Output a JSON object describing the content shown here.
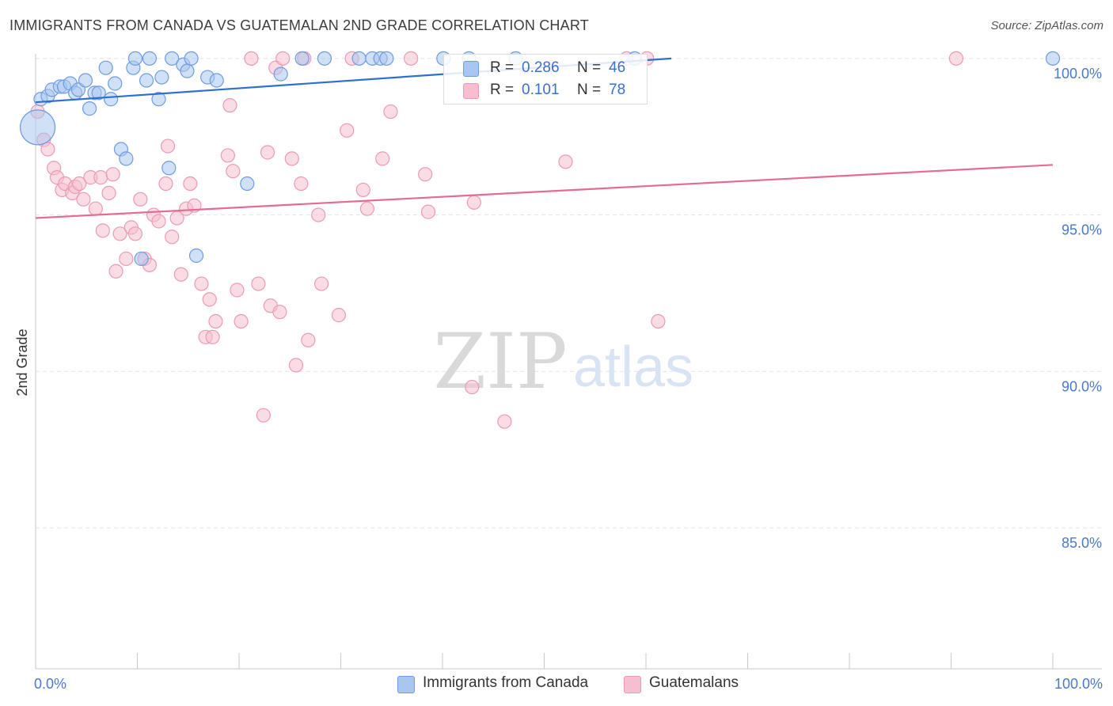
{
  "title": "IMMIGRANTS FROM CANADA VS GUATEMALAN 2ND GRADE CORRELATION CHART",
  "source": "Source: ZipAtlas.com",
  "watermark": {
    "zip": "ZIP",
    "atlas": "atlas"
  },
  "colors": {
    "blue_fill": "#a9c6ee",
    "blue_stroke": "#6f9be0",
    "blue_line": "#2f6fd0",
    "pink_fill": "#f6bfd0",
    "pink_stroke": "#ec9ab4",
    "pink_line": "#e56b93",
    "axis_text": "#4b78c8",
    "grid": "#e3e3e3"
  },
  "legend_stats": [
    {
      "series": "Immigrants from Canada",
      "r_label": "R =",
      "r_value": "0.286",
      "n_label": "N =",
      "n_value": "46"
    },
    {
      "series": "Guatemalans",
      "r_label": "R =",
      "r_value": "0.101",
      "n_label": "N =",
      "n_value": "78"
    }
  ],
  "chart_data": {
    "type": "scatter",
    "title": "IMMIGRANTS FROM CANADA VS GUATEMALAN 2ND GRADE CORRELATION CHART",
    "xlabel": "",
    "ylabel": "2nd Grade",
    "xlim": [
      0,
      100
    ],
    "ylim": [
      80.5,
      100.35
    ],
    "x_tick_labels": [
      {
        "value": 0,
        "label": "0.0%"
      },
      {
        "value": 100,
        "label": "100.0%"
      }
    ],
    "y_tick_labels": [
      {
        "value": 100,
        "label": "100.0%"
      },
      {
        "value": 95,
        "label": "95.0%"
      },
      {
        "value": 90,
        "label": "90.0%"
      },
      {
        "value": 85,
        "label": "85.0%"
      }
    ],
    "grid": true,
    "legend_position": "bottom",
    "series": [
      {
        "name": "Immigrants from Canada",
        "color": "#a9c6ee",
        "trend": {
          "x0": 0,
          "y0": 98.6,
          "x1": 62.5,
          "y1": 100.0
        },
        "points": [
          {
            "x": 0.2,
            "y": 97.8,
            "big": true
          },
          {
            "x": 0.5,
            "y": 98.7
          },
          {
            "x": 1.2,
            "y": 98.8
          },
          {
            "x": 1.6,
            "y": 99.0
          },
          {
            "x": 2.4,
            "y": 99.1
          },
          {
            "x": 2.8,
            "y": 99.1
          },
          {
            "x": 3.4,
            "y": 99.2
          },
          {
            "x": 3.9,
            "y": 98.9
          },
          {
            "x": 4.2,
            "y": 99.0
          },
          {
            "x": 4.9,
            "y": 99.3
          },
          {
            "x": 5.3,
            "y": 98.4
          },
          {
            "x": 5.8,
            "y": 98.9
          },
          {
            "x": 6.2,
            "y": 98.9
          },
          {
            "x": 6.9,
            "y": 99.7
          },
          {
            "x": 7.4,
            "y": 98.7
          },
          {
            "x": 7.8,
            "y": 99.2
          },
          {
            "x": 8.4,
            "y": 97.1
          },
          {
            "x": 8.9,
            "y": 96.8
          },
          {
            "x": 9.6,
            "y": 99.7
          },
          {
            "x": 9.8,
            "y": 100.0
          },
          {
            "x": 10.4,
            "y": 93.6
          },
          {
            "x": 10.9,
            "y": 99.3
          },
          {
            "x": 11.2,
            "y": 100.0
          },
          {
            "x": 12.1,
            "y": 98.7
          },
          {
            "x": 12.4,
            "y": 99.4
          },
          {
            "x": 13.1,
            "y": 96.5
          },
          {
            "x": 13.4,
            "y": 100.0
          },
          {
            "x": 14.5,
            "y": 99.8
          },
          {
            "x": 14.9,
            "y": 99.6
          },
          {
            "x": 15.3,
            "y": 100.0
          },
          {
            "x": 15.8,
            "y": 93.7
          },
          {
            "x": 16.9,
            "y": 99.4
          },
          {
            "x": 17.8,
            "y": 99.3
          },
          {
            "x": 20.8,
            "y": 96.0
          },
          {
            "x": 24.1,
            "y": 99.5
          },
          {
            "x": 26.2,
            "y": 100.0
          },
          {
            "x": 28.4,
            "y": 100.0
          },
          {
            "x": 31.8,
            "y": 100.0
          },
          {
            "x": 33.1,
            "y": 100.0
          },
          {
            "x": 33.9,
            "y": 100.0
          },
          {
            "x": 34.5,
            "y": 100.0
          },
          {
            "x": 40.1,
            "y": 100.0
          },
          {
            "x": 42.6,
            "y": 100.0
          },
          {
            "x": 47.2,
            "y": 100.0
          },
          {
            "x": 58.9,
            "y": 100.0
          },
          {
            "x": 100.0,
            "y": 100.0
          }
        ]
      },
      {
        "name": "Guatemalans",
        "color": "#f6bfd0",
        "trend": {
          "x0": 0,
          "y0": 94.9,
          "x1": 100,
          "y1": 96.6
        },
        "points": [
          {
            "x": 0.2,
            "y": 98.3
          },
          {
            "x": 0.8,
            "y": 97.4
          },
          {
            "x": 1.2,
            "y": 97.1
          },
          {
            "x": 1.8,
            "y": 96.5
          },
          {
            "x": 2.1,
            "y": 96.2
          },
          {
            "x": 2.6,
            "y": 95.8
          },
          {
            "x": 2.9,
            "y": 96.0
          },
          {
            "x": 3.6,
            "y": 95.7
          },
          {
            "x": 3.9,
            "y": 95.9
          },
          {
            "x": 4.3,
            "y": 96.0
          },
          {
            "x": 4.7,
            "y": 95.5
          },
          {
            "x": 5.4,
            "y": 96.2
          },
          {
            "x": 5.9,
            "y": 95.2
          },
          {
            "x": 6.4,
            "y": 96.2
          },
          {
            "x": 6.6,
            "y": 94.5
          },
          {
            "x": 7.2,
            "y": 95.7
          },
          {
            "x": 7.6,
            "y": 96.3
          },
          {
            "x": 7.9,
            "y": 93.2
          },
          {
            "x": 8.3,
            "y": 94.4
          },
          {
            "x": 8.9,
            "y": 93.6
          },
          {
            "x": 9.4,
            "y": 94.6
          },
          {
            "x": 9.8,
            "y": 94.4
          },
          {
            "x": 10.3,
            "y": 95.5
          },
          {
            "x": 10.7,
            "y": 93.6
          },
          {
            "x": 11.2,
            "y": 93.4
          },
          {
            "x": 11.6,
            "y": 95.0
          },
          {
            "x": 12.1,
            "y": 94.8
          },
          {
            "x": 12.8,
            "y": 96.0
          },
          {
            "x": 13.0,
            "y": 97.2
          },
          {
            "x": 13.4,
            "y": 94.3
          },
          {
            "x": 13.9,
            "y": 94.9
          },
          {
            "x": 14.3,
            "y": 93.1
          },
          {
            "x": 14.8,
            "y": 95.2
          },
          {
            "x": 15.2,
            "y": 96.0
          },
          {
            "x": 15.6,
            "y": 95.3
          },
          {
            "x": 16.3,
            "y": 92.8
          },
          {
            "x": 16.7,
            "y": 91.1
          },
          {
            "x": 17.1,
            "y": 92.3
          },
          {
            "x": 17.4,
            "y": 91.1
          },
          {
            "x": 17.7,
            "y": 91.6
          },
          {
            "x": 18.9,
            "y": 96.9
          },
          {
            "x": 19.1,
            "y": 98.5
          },
          {
            "x": 19.4,
            "y": 96.4
          },
          {
            "x": 19.8,
            "y": 92.6
          },
          {
            "x": 20.2,
            "y": 91.6
          },
          {
            "x": 21.2,
            "y": 100.0
          },
          {
            "x": 21.9,
            "y": 92.8
          },
          {
            "x": 22.4,
            "y": 88.6
          },
          {
            "x": 22.8,
            "y": 97.0
          },
          {
            "x": 23.1,
            "y": 92.1
          },
          {
            "x": 23.6,
            "y": 99.7
          },
          {
            "x": 24.0,
            "y": 91.9
          },
          {
            "x": 24.3,
            "y": 100.0
          },
          {
            "x": 25.2,
            "y": 96.8
          },
          {
            "x": 25.6,
            "y": 90.2
          },
          {
            "x": 26.1,
            "y": 96.0
          },
          {
            "x": 26.4,
            "y": 100.0
          },
          {
            "x": 26.8,
            "y": 91.0
          },
          {
            "x": 27.8,
            "y": 95.0
          },
          {
            "x": 28.1,
            "y": 92.8
          },
          {
            "x": 29.8,
            "y": 91.8
          },
          {
            "x": 30.6,
            "y": 97.7
          },
          {
            "x": 31.1,
            "y": 100.0
          },
          {
            "x": 32.2,
            "y": 95.8
          },
          {
            "x": 32.6,
            "y": 95.2
          },
          {
            "x": 34.1,
            "y": 96.8
          },
          {
            "x": 34.9,
            "y": 98.3
          },
          {
            "x": 36.9,
            "y": 100.0
          },
          {
            "x": 38.3,
            "y": 96.3
          },
          {
            "x": 38.6,
            "y": 95.1
          },
          {
            "x": 42.9,
            "y": 89.5
          },
          {
            "x": 43.1,
            "y": 95.4
          },
          {
            "x": 46.1,
            "y": 88.4
          },
          {
            "x": 52.1,
            "y": 96.7
          },
          {
            "x": 58.1,
            "y": 100.0
          },
          {
            "x": 60.1,
            "y": 100.0
          },
          {
            "x": 61.2,
            "y": 91.6
          },
          {
            "x": 90.5,
            "y": 100.0
          }
        ]
      }
    ]
  }
}
